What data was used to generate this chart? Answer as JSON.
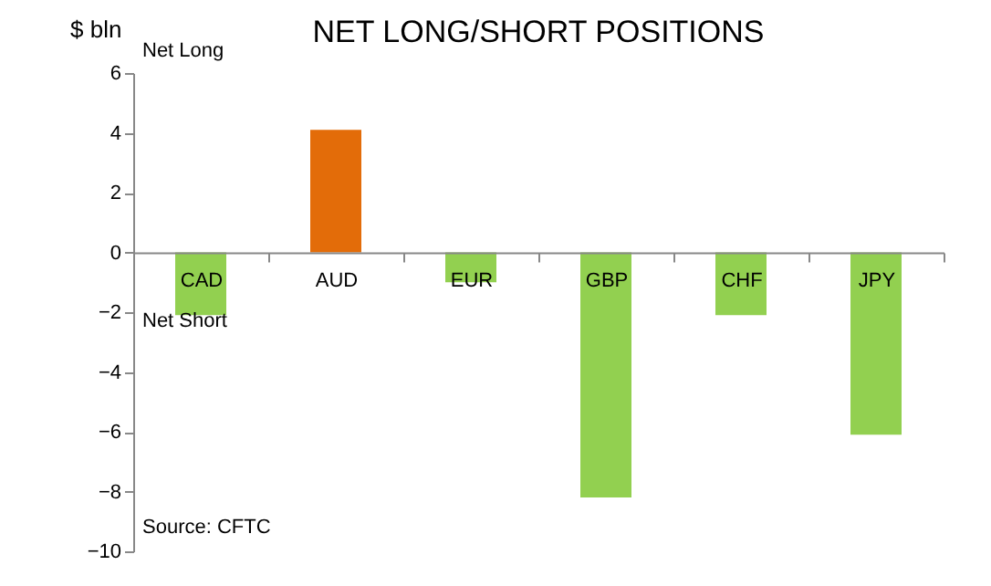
{
  "chart_data": {
    "type": "bar",
    "title": "NET LONG/SHORT POSITIONS",
    "ylabel": "$ bln",
    "categories": [
      "CAD",
      "AUD",
      "EUR",
      "GBP",
      "CHF",
      "JPY"
    ],
    "values": [
      -2.1,
      4.1,
      -1.0,
      -8.2,
      -2.1,
      -6.1
    ],
    "colors": [
      "#92d050",
      "#e36c09",
      "#92d050",
      "#92d050",
      "#92d050",
      "#92d050"
    ],
    "ylim": [
      -10,
      6
    ],
    "yticks": [
      -10,
      -8,
      -6,
      -4,
      -2,
      0,
      2,
      4,
      6
    ],
    "grid": false,
    "annotations": [
      "Net Long",
      "Net Short",
      "Source: CFTC"
    ]
  }
}
